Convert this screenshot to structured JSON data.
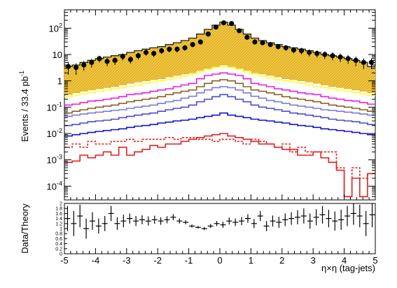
{
  "chart_data": [
    {
      "panel": "main",
      "type": "line",
      "y_scale": "log",
      "ylim": [
        3e-05,
        500
      ],
      "xlim": [
        -5,
        5
      ],
      "ylabel_main": "Events / 33.4 pb",
      "ylabel_sup": "-1",
      "y_ticks": [
        {
          "value": 0.0001,
          "base": "10",
          "exp": "-4"
        },
        {
          "value": 0.001,
          "base": "10",
          "exp": "-3"
        },
        {
          "value": 0.01,
          "base": "10",
          "exp": "-2"
        },
        {
          "value": 0.1,
          "base": "10",
          "exp": "-1"
        },
        {
          "value": 1,
          "base": "1",
          "exp": ""
        },
        {
          "value": 10,
          "base": "10",
          "exp": ""
        },
        {
          "value": 100,
          "base": "10",
          "exp": "2"
        }
      ],
      "x_edges": [
        -5,
        -4.75,
        -4.5,
        -4.25,
        -4,
        -3.75,
        -3.5,
        -3.25,
        -3,
        -2.75,
        -2.5,
        -2.25,
        -2,
        -1.75,
        -1.5,
        -1.25,
        -1,
        -0.75,
        -0.5,
        -0.25,
        0,
        0.25,
        0.5,
        0.75,
        1,
        1.25,
        1.5,
        1.75,
        2,
        2.25,
        2.5,
        2.75,
        3,
        3.25,
        3.5,
        3.75,
        4,
        4.25,
        4.5,
        4.75,
        5
      ],
      "filled_band": {
        "color": "#f2c53d",
        "hatch": "#c49a1e",
        "lower": [
          0.3,
          0.35,
          0.4,
          0.45,
          0.5,
          0.55,
          0.6,
          0.7,
          0.8,
          0.9,
          1.0,
          1.1,
          1.2,
          1.4,
          1.6,
          1.8,
          2.0,
          2.5,
          3.0,
          3.5,
          4.0,
          3.5,
          3.0,
          2.5,
          2.0,
          1.8,
          1.6,
          1.4,
          1.2,
          1.1,
          1.0,
          0.9,
          0.8,
          0.7,
          0.6,
          0.55,
          0.5,
          0.45,
          0.4,
          0.35
        ],
        "upper": [
          3.5,
          4,
          5,
          6,
          7,
          8,
          9,
          10,
          12,
          14,
          16,
          18,
          20,
          24,
          28,
          34,
          42,
          60,
          90,
          130,
          170,
          130,
          90,
          60,
          42,
          34,
          28,
          24,
          20,
          18,
          16,
          14,
          12,
          10,
          9,
          8,
          7,
          6,
          5,
          3.5
        ]
      },
      "series": [
        {
          "color": "#ffff33",
          "values": [
            0.25,
            0.28,
            0.32,
            0.36,
            0.4,
            0.45,
            0.5,
            0.55,
            0.6,
            0.7,
            0.8,
            0.9,
            1.0,
            1.1,
            1.3,
            1.5,
            1.8,
            2.2,
            2.8,
            3.2,
            3.5,
            3.2,
            2.8,
            2.2,
            1.8,
            1.5,
            1.3,
            1.1,
            1.0,
            0.9,
            0.8,
            0.7,
            0.6,
            0.55,
            0.5,
            0.45,
            0.4,
            0.36,
            0.32,
            0.28
          ]
        },
        {
          "color": "#e020e0",
          "values": [
            0.12,
            0.13,
            0.15,
            0.17,
            0.18,
            0.2,
            0.22,
            0.25,
            0.3,
            0.32,
            0.35,
            0.4,
            0.45,
            0.5,
            0.6,
            0.7,
            0.8,
            1.2,
            1.6,
            1.8,
            2.0,
            1.8,
            1.6,
            1.2,
            0.8,
            0.7,
            0.6,
            0.5,
            0.45,
            0.4,
            0.35,
            0.32,
            0.3,
            0.25,
            0.22,
            0.2,
            0.18,
            0.17,
            0.15,
            0.13
          ]
        },
        {
          "color": "#8a6020",
          "values": [
            0.06,
            0.07,
            0.08,
            0.09,
            0.1,
            0.11,
            0.12,
            0.14,
            0.16,
            0.18,
            0.2,
            0.22,
            0.25,
            0.3,
            0.35,
            0.4,
            0.45,
            0.6,
            0.8,
            1.0,
            1.1,
            1.0,
            0.8,
            0.6,
            0.45,
            0.4,
            0.35,
            0.3,
            0.25,
            0.22,
            0.2,
            0.18,
            0.16,
            0.14,
            0.12,
            0.11,
            0.1,
            0.09,
            0.08,
            0.07
          ]
        },
        {
          "color": "#7b7bd6",
          "values": [
            0.045,
            0.05,
            0.055,
            0.06,
            0.065,
            0.07,
            0.075,
            0.08,
            0.09,
            0.1,
            0.11,
            0.12,
            0.14,
            0.16,
            0.18,
            0.22,
            0.26,
            0.35,
            0.45,
            0.55,
            0.6,
            0.55,
            0.45,
            0.35,
            0.26,
            0.22,
            0.18,
            0.16,
            0.14,
            0.12,
            0.11,
            0.1,
            0.09,
            0.08,
            0.075,
            0.07,
            0.065,
            0.06,
            0.055,
            0.05
          ]
        },
        {
          "color": "#4b4bd0",
          "values": [
            0.02,
            0.022,
            0.025,
            0.028,
            0.03,
            0.032,
            0.035,
            0.04,
            0.045,
            0.05,
            0.055,
            0.06,
            0.07,
            0.08,
            0.09,
            0.1,
            0.12,
            0.16,
            0.2,
            0.25,
            0.3,
            0.25,
            0.2,
            0.16,
            0.12,
            0.1,
            0.09,
            0.08,
            0.07,
            0.06,
            0.055,
            0.05,
            0.045,
            0.04,
            0.035,
            0.032,
            0.03,
            0.028,
            0.025,
            0.022
          ]
        },
        {
          "color": "#1010cc",
          "values": [
            0.008,
            0.009,
            0.01,
            0.011,
            0.012,
            0.013,
            0.014,
            0.015,
            0.017,
            0.019,
            0.02,
            0.022,
            0.025,
            0.027,
            0.03,
            0.032,
            0.035,
            0.04,
            0.045,
            0.05,
            0.06,
            0.05,
            0.045,
            0.04,
            0.035,
            0.032,
            0.03,
            0.027,
            0.025,
            0.022,
            0.02,
            0.019,
            0.017,
            0.015,
            0.014,
            0.013,
            0.012,
            0.011,
            0.01,
            0.009
          ]
        },
        {
          "color": "#e02020",
          "dashed": true,
          "values": [
            0.003,
            0.004,
            0.003,
            0.005,
            0.004,
            0.004,
            0.005,
            0.005,
            0.006,
            0.005,
            0.006,
            0.006,
            0.006,
            0.007,
            0.006,
            0.007,
            0.007,
            0.006,
            0.006,
            0.005,
            0.006,
            0.006,
            0.005,
            0.004,
            0.006,
            0.005,
            0.004,
            0.003,
            0.004,
            0.002,
            0.003,
            0.002,
            0.002,
            0.002,
            0.002,
            0.0005,
            4e-05,
            0.0005,
            0.0002,
            0.0003
          ]
        },
        {
          "color": "#e02020",
          "values": [
            0.0008,
            0.0009,
            0.0015,
            0.0012,
            0.0015,
            0.002,
            0.0015,
            0.003,
            0.0015,
            0.002,
            0.0025,
            0.0035,
            0.003,
            0.004,
            0.004,
            0.005,
            0.006,
            0.007,
            0.008,
            0.009,
            0.01,
            0.008,
            0.007,
            0.006,
            0.005,
            0.004,
            0.004,
            0.003,
            0.0025,
            0.0025,
            0.0015,
            0.0015,
            0.002,
            0.0012,
            0.0008,
            0.0004,
            4e-05,
            0.0002,
            4e-05,
            0.0003
          ]
        }
      ],
      "data_points": {
        "values": [
          3.5,
          3.2,
          4.0,
          5.0,
          7.0,
          5.5,
          6.0,
          8.5,
          6.5,
          9.0,
          12,
          11,
          14,
          16,
          16,
          18,
          24,
          30,
          60,
          110,
          160,
          150,
          80,
          45,
          30,
          28,
          24,
          20,
          18,
          15,
          14,
          12,
          11,
          10,
          9,
          8,
          7,
          6,
          5,
          5
        ],
        "errors": [
          1.8,
          1.5,
          1.6,
          1.8,
          2.0,
          1.9,
          2.0,
          2.5,
          2.0,
          2.5,
          3,
          3,
          3.5,
          4,
          4,
          4,
          5,
          5.5,
          8,
          10,
          12,
          12,
          9,
          7,
          5,
          5,
          5,
          4.5,
          4,
          4,
          4,
          3.5,
          3.3,
          3.2,
          3,
          2.8,
          2.6,
          2.4,
          2.2,
          2.2
        ]
      }
    },
    {
      "panel": "ratio",
      "type": "scatter",
      "ylabel": "Data/Theory",
      "xlabel": "η×η (tag-jets)",
      "ylim": [
        0,
        2
      ],
      "xlim": [
        -5,
        5
      ],
      "x_ticks": [
        "-5",
        "-4",
        "-3",
        "-2",
        "-1",
        "0",
        "1",
        "2",
        "3",
        "4",
        "5"
      ],
      "y_ticks": [
        "0",
        "0.2",
        "0.4",
        "0.6",
        "0.8",
        "1",
        "1.2",
        "1.4",
        "1.6",
        "1.8",
        "2"
      ],
      "values": [
        1.4,
        1.2,
        1.5,
        1.0,
        1.3,
        1.1,
        1.2,
        1.6,
        1.2,
        1.3,
        1.4,
        1.3,
        1.35,
        1.3,
        1.35,
        1.3,
        1.35,
        1.45,
        1.3,
        1.25,
        1.1,
        1.05,
        1.0,
        1.1,
        1.2,
        1.15,
        1.3,
        1.25,
        1.3,
        1.4,
        1.2,
        1.5,
        1.1,
        1.3,
        1.25,
        1.35,
        1.4,
        1.45,
        1.5,
        1.3,
        1.45,
        1.55,
        1.4,
        1.3,
        1.35,
        1.5,
        1.6,
        1.5,
        1.2,
        1.55
      ],
      "errors": [
        0.5,
        0.5,
        0.45,
        0.4,
        0.35,
        0.3,
        0.3,
        0.3,
        0.25,
        0.25,
        0.2,
        0.2,
        0.18,
        0.18,
        0.16,
        0.15,
        0.14,
        0.12,
        0.1,
        0.08,
        0.06,
        0.05,
        0.06,
        0.08,
        0.1,
        0.12,
        0.14,
        0.15,
        0.16,
        0.17,
        0.18,
        0.2,
        0.2,
        0.22,
        0.22,
        0.25,
        0.25,
        0.28,
        0.3,
        0.3,
        0.32,
        0.35,
        0.35,
        0.38,
        0.4,
        0.4,
        0.45,
        0.45,
        0.5,
        0.5
      ]
    }
  ]
}
